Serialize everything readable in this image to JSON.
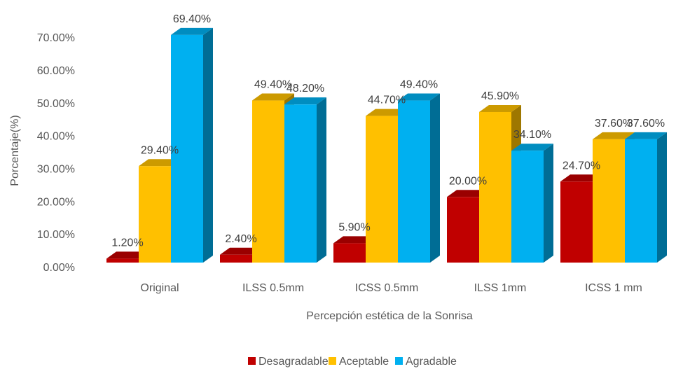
{
  "chart_data": {
    "type": "bar",
    "title": "",
    "xlabel": "Percepción estética de la Sonrisa",
    "ylabel": "Porcentaje(%)",
    "ylim": [
      0,
      70
    ],
    "yticks": [
      "0.00%",
      "10.00%",
      "20.00%",
      "30.00%",
      "40.00%",
      "50.00%",
      "60.00%",
      "70.00%"
    ],
    "categories": [
      "Original",
      "ILSS 0.5mm",
      "ICSS 0.5mm",
      "ILSS 1mm",
      "ICSS 1 mm"
    ],
    "series": [
      {
        "name": "Desagradable",
        "color": "#C00000",
        "values": [
          1.2,
          2.4,
          5.9,
          20.0,
          24.7
        ],
        "labels": [
          "1.20%",
          "2.40%",
          "5.90%",
          "20.00%",
          "24.70%"
        ]
      },
      {
        "name": "Aceptable",
        "color": "#FFC000",
        "values": [
          29.4,
          49.4,
          44.7,
          45.9,
          37.6
        ],
        "labels": [
          "29.40%",
          "49.40%",
          "44.70%",
          "45.90%",
          "37.60%"
        ]
      },
      {
        "name": "Agradable",
        "color": "#00B0F0",
        "values": [
          69.4,
          48.2,
          49.4,
          34.1,
          37.6
        ],
        "labels": [
          "69.40%",
          "48.20%",
          "49.40%",
          "34.10%",
          "37.60%"
        ]
      }
    ],
    "legend_position": "bottom",
    "grid": false,
    "style": "3d-column"
  }
}
